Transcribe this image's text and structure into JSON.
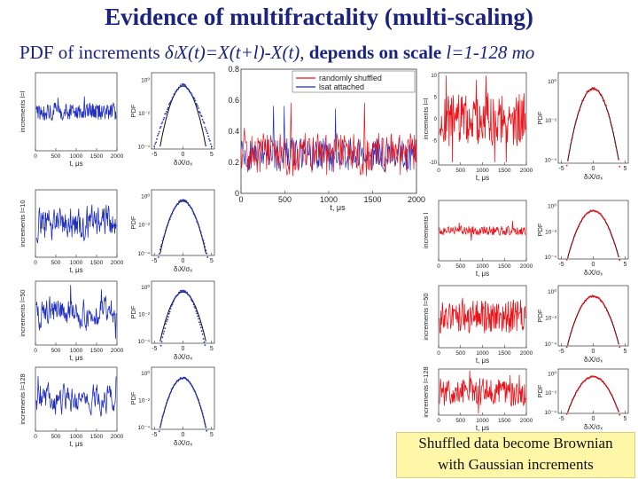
{
  "title": "Evidence of multifractality (multi-scaling)",
  "subtitle": {
    "prefix": "PDF of increments ",
    "formula": "δₗX(t)=X(t+l)-X(t),",
    "middle": " depends on scale ",
    "scale": "l=1-128 mo"
  },
  "caption": {
    "line1": "Shuffled data become Brownian",
    "line2": "with  Gaussian increments"
  },
  "colors": {
    "title": "#1a237e",
    "blue_series": "#1f2fbf",
    "red_series": "#e8141a",
    "gaussian_fit": "#0a0a0a",
    "caption_bg": "#fff7a8"
  },
  "chart_data": [
    {
      "type": "line",
      "id": "inset",
      "series": [
        {
          "name": "randomly shuffled",
          "color": "#e8141a"
        },
        {
          "name": "lsat attached",
          "color": "#1f2fbf"
        }
      ],
      "xlabel": "t, μs",
      "xlim": [
        0,
        2000
      ],
      "ylim": [
        0,
        0.8
      ],
      "xticks": [
        "0",
        "500",
        "1000",
        "1500",
        "2000"
      ],
      "yticks": [
        "0",
        "0.2",
        "0.4",
        "0.6",
        "0.8"
      ],
      "baseline_level": 0.25,
      "note": "approximate"
    },
    {
      "type": "line",
      "id": "blue-ts-1",
      "ylabel": "increments l=l",
      "xlabel": "t, μs",
      "xticks": [
        "0",
        "500",
        "1000",
        "1500",
        "2000"
      ],
      "series_color": "blue"
    },
    {
      "type": "line",
      "id": "blue-ts-10",
      "ylabel": "increments l=10",
      "xlabel": "t, μs",
      "xticks": [
        "0",
        "500",
        "1000",
        "1500",
        "2000"
      ],
      "series_color": "blue"
    },
    {
      "type": "line",
      "id": "blue-ts-50",
      "ylabel": "increments l=50",
      "xlabel": "t, μs",
      "xticks": [
        "0",
        "500",
        "1000",
        "1500",
        "2000"
      ],
      "series_color": "blue"
    },
    {
      "type": "line",
      "id": "blue-ts-128",
      "ylabel": "increments l=128",
      "xlabel": "t, μs",
      "xticks": [
        "0",
        "500",
        "1000",
        "1500",
        "2000"
      ],
      "series_color": "blue"
    },
    {
      "type": "scatter",
      "id": "blue-pdf-1",
      "ylabel": "PDF",
      "xlabel": "δₗX/σₓ",
      "xticks": [
        "-5",
        "0",
        "5"
      ],
      "yticks": [
        "10⁰",
        "10⁻²",
        "10⁻⁴"
      ],
      "log_y": true,
      "shape": "sharp-peak"
    },
    {
      "type": "scatter",
      "id": "blue-pdf-10",
      "ylabel": "PDF",
      "xlabel": "δₗX/σₓ",
      "xticks": [
        "-5",
        "0",
        "5"
      ],
      "yticks": [
        "10⁰",
        "10⁻²",
        "10⁻⁴"
      ],
      "log_y": true,
      "shape": "peaked"
    },
    {
      "type": "scatter",
      "id": "blue-pdf-50",
      "ylabel": "PDF",
      "xlabel": "δₗX/σₓ",
      "xticks": [
        "-5",
        "0",
        "5"
      ],
      "yticks": [
        "10⁰",
        "10⁻²",
        "10⁻⁴"
      ],
      "log_y": true,
      "shape": "near-gaussian"
    },
    {
      "type": "scatter",
      "id": "blue-pdf-128",
      "ylabel": "PDF",
      "xlabel": "δₗX/σₓ",
      "xticks": [
        "-5",
        "0",
        "5"
      ],
      "yticks": [
        "10⁰",
        "10⁻²",
        "10⁻⁴"
      ],
      "log_y": true,
      "shape": "gaussian"
    },
    {
      "type": "line",
      "id": "red-ts-1",
      "ylabel": "increments l=l",
      "xlabel": "t, μs",
      "xticks": [
        "0",
        "500",
        "1000",
        "1500",
        "2000"
      ],
      "yticks": [
        "10",
        "5",
        "0",
        "-5",
        "-10"
      ],
      "series_color": "red"
    },
    {
      "type": "line",
      "id": "red-ts-10",
      "ylabel": "increments l",
      "xlabel": "t, μs",
      "xticks": [
        "0",
        "500",
        "1000",
        "1500",
        "2000"
      ],
      "series_color": "red"
    },
    {
      "type": "line",
      "id": "red-ts-50",
      "ylabel": "increments l=50",
      "xlabel": "t, μs",
      "xticks": [
        "0",
        "500",
        "1000",
        "1500",
        "2000"
      ],
      "series_color": "red"
    },
    {
      "type": "line",
      "id": "red-ts-128",
      "ylabel": "increments l=128",
      "xlabel": "t, μs",
      "xticks": [
        "0",
        "500",
        "1000",
        "1500",
        "2000"
      ],
      "series_color": "red"
    },
    {
      "type": "scatter",
      "id": "red-pdf-1",
      "ylabel": "PDF",
      "xlabel": "δₗX/σₓ",
      "xticks": [
        "-5",
        "0",
        "5"
      ],
      "yticks": [
        "10⁰",
        "10⁻²",
        "10⁻⁴"
      ],
      "log_y": true,
      "shape": "gaussian"
    },
    {
      "type": "scatter",
      "id": "red-pdf-10",
      "ylabel": "PDF",
      "xlabel": "δₗX/σₓ",
      "xticks": [
        "-5",
        "0",
        "5"
      ],
      "yticks": [
        "10⁰",
        "10⁻²",
        "10⁻⁴"
      ],
      "log_y": true,
      "shape": "gaussian"
    },
    {
      "type": "scatter",
      "id": "red-pdf-50",
      "ylabel": "PDF",
      "xlabel": "δₗX/σₓ",
      "xticks": [
        "-5",
        "0",
        "5"
      ],
      "yticks": [
        "10⁰",
        "10⁻²",
        "10⁻⁴"
      ],
      "log_y": true,
      "shape": "gaussian"
    },
    {
      "type": "scatter",
      "id": "red-pdf-128",
      "ylabel": "PDF",
      "xlabel": "δₗX/σₓ",
      "xticks": [
        "-5",
        "0",
        "5"
      ],
      "yticks": [
        "10⁰",
        "10⁻²",
        "10⁻⁴"
      ],
      "log_y": true,
      "shape": "gaussian"
    }
  ]
}
